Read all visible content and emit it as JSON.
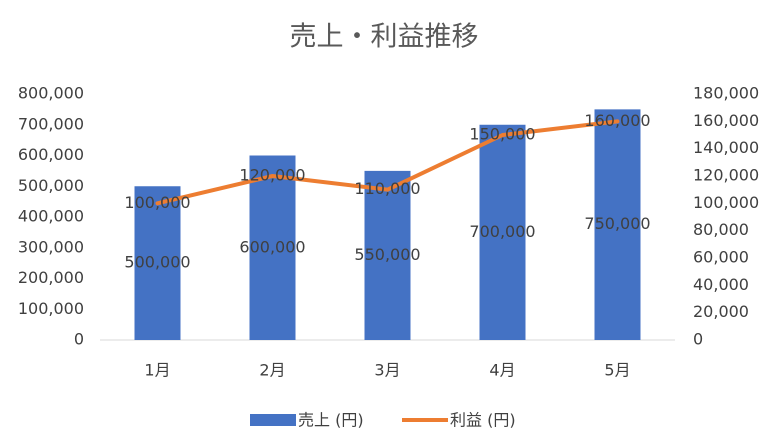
{
  "chart_data": {
    "type": "bar",
    "title": "売上・利益推移",
    "categories": [
      "1月",
      "2月",
      "3月",
      "4月",
      "5月"
    ],
    "series": [
      {
        "name": "売上 (円)",
        "type": "bar",
        "color": "#4472c4",
        "values": [
          500000,
          600000,
          550000,
          700000,
          750000
        ],
        "value_labels": [
          "500,000",
          "600,000",
          "550,000",
          "700,000",
          "750,000"
        ]
      },
      {
        "name": "利益 (円)",
        "type": "line",
        "axis": "y2",
        "color": "#ed7d31",
        "values": [
          100000,
          120000,
          110000,
          150000,
          160000
        ],
        "value_labels": [
          "100,000",
          "120,000",
          "110,000",
          "150,000",
          "160,000"
        ]
      }
    ],
    "ylim": [
      0,
      800000
    ],
    "yticks": [
      0,
      {
        "value": 100000,
        "label": "100,000"
      },
      {
        "value": 200000,
        "label": "200,000"
      },
      {
        "value": 300000,
        "label": "300,000"
      },
      {
        "value": 400000,
        "label": "400,000"
      },
      {
        "value": 500000,
        "label": "500,000"
      },
      {
        "value": 600000,
        "label": "600,000"
      },
      {
        "value": 700000,
        "label": "700,000"
      },
      {
        "value": 800000,
        "label": "800,000"
      }
    ],
    "y2lim": [
      0,
      180000
    ],
    "y2ticks": [
      0,
      {
        "value": 20000,
        "label": "20,000"
      },
      {
        "value": 40000,
        "label": "40,000"
      },
      {
        "value": 60000,
        "label": "60,000"
      },
      {
        "value": 80000,
        "label": "80,000"
      },
      {
        "value": 100000,
        "label": "100,000"
      },
      {
        "value": 120000,
        "label": "120,000"
      },
      {
        "value": 140000,
        "label": "140,000"
      },
      {
        "value": 160000,
        "label": "160,000"
      },
      {
        "value": 180000,
        "label": "180,000"
      }
    ],
    "legend": "bottom"
  }
}
